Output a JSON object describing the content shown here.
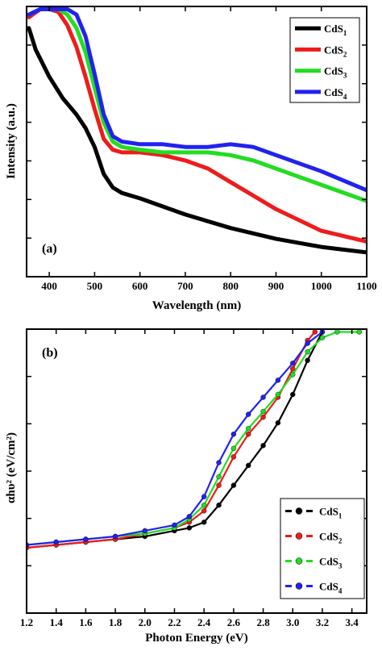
{
  "chart_data": [
    {
      "type": "line",
      "panel_label": "(a)",
      "xlabel": "Wavelength (nm)",
      "ylabel": "Intensity (a.u.)",
      "xlim": [
        350,
        1100
      ],
      "ylim": [
        0,
        1
      ],
      "xticks": [
        400,
        500,
        600,
        700,
        800,
        900,
        1000,
        1100
      ],
      "ytick_labels": "none",
      "legend_position": "top-right",
      "series": [
        {
          "name": "CdS",
          "sub": "1",
          "color": "#000000",
          "x": [
            355,
            370,
            400,
            430,
            460,
            480,
            500,
            520,
            540,
            560,
            600,
            650,
            700,
            800,
            900,
            1000,
            1100
          ],
          "y": [
            0.92,
            0.84,
            0.74,
            0.66,
            0.6,
            0.55,
            0.48,
            0.38,
            0.33,
            0.31,
            0.29,
            0.26,
            0.23,
            0.18,
            0.14,
            0.11,
            0.09
          ]
        },
        {
          "name": "CdS",
          "sub": "2",
          "color": "#ee1c1c",
          "x": [
            355,
            380,
            400,
            420,
            440,
            460,
            480,
            500,
            520,
            540,
            560,
            600,
            650,
            700,
            750,
            800,
            850,
            900,
            1000,
            1100
          ],
          "y": [
            0.96,
            0.99,
            0.99,
            0.98,
            0.93,
            0.85,
            0.74,
            0.62,
            0.51,
            0.47,
            0.46,
            0.46,
            0.45,
            0.43,
            0.4,
            0.35,
            0.3,
            0.25,
            0.17,
            0.13
          ]
        },
        {
          "name": "CdS",
          "sub": "3",
          "color": "#22dd22",
          "x": [
            355,
            380,
            400,
            420,
            440,
            460,
            480,
            500,
            520,
            540,
            560,
            600,
            650,
            700,
            750,
            800,
            850,
            900,
            1000,
            1100
          ],
          "y": [
            0.97,
            0.99,
            0.99,
            0.99,
            0.97,
            0.92,
            0.83,
            0.7,
            0.57,
            0.5,
            0.48,
            0.47,
            0.46,
            0.46,
            0.46,
            0.45,
            0.43,
            0.4,
            0.34,
            0.28
          ]
        },
        {
          "name": "CdS",
          "sub": "4",
          "color": "#2222ee",
          "x": [
            355,
            380,
            400,
            420,
            440,
            460,
            480,
            500,
            520,
            540,
            560,
            600,
            650,
            700,
            750,
            800,
            850,
            900,
            1000,
            1100
          ],
          "y": [
            0.97,
            0.99,
            0.99,
            0.99,
            0.99,
            0.97,
            0.89,
            0.75,
            0.6,
            0.52,
            0.5,
            0.49,
            0.49,
            0.48,
            0.48,
            0.49,
            0.48,
            0.45,
            0.39,
            0.32
          ]
        }
      ]
    },
    {
      "type": "scatter",
      "panel_label": "(b)",
      "xlabel": "Photon Energy (eV)",
      "ylabel": "αhυ² (eV/cm²)",
      "xlim": [
        1.2,
        3.5
      ],
      "ylim": [
        0,
        1
      ],
      "xticks": [
        "1.2",
        "1.4",
        "1.6",
        "1.8",
        "2.0",
        "2.2",
        "2.4",
        "2.6",
        "2.8",
        "3.0",
        "3.2",
        "3.4"
      ],
      "ytick_labels": "none",
      "legend_position": "bottom-right",
      "series": [
        {
          "name": "CdS",
          "sub": "1",
          "color": "#000000",
          "x": [
            1.2,
            1.4,
            1.6,
            1.8,
            2.0,
            2.2,
            2.3,
            2.4,
            2.5,
            2.6,
            2.7,
            2.8,
            2.9,
            3.0,
            3.1,
            3.2
          ],
          "y": [
            0.23,
            0.24,
            0.25,
            0.26,
            0.27,
            0.29,
            0.3,
            0.32,
            0.38,
            0.45,
            0.52,
            0.59,
            0.67,
            0.77,
            0.89,
            0.99
          ]
        },
        {
          "name": "CdS",
          "sub": "2",
          "color": "#ee1c1c",
          "x": [
            1.2,
            1.4,
            1.6,
            1.8,
            2.0,
            2.2,
            2.3,
            2.4,
            2.5,
            2.6,
            2.7,
            2.8,
            2.9,
            3.0,
            3.1,
            3.15
          ],
          "y": [
            0.23,
            0.24,
            0.25,
            0.26,
            0.28,
            0.3,
            0.32,
            0.36,
            0.45,
            0.55,
            0.63,
            0.69,
            0.76,
            0.86,
            0.96,
            0.99
          ]
        },
        {
          "name": "CdS",
          "sub": "3",
          "color": "#22dd22",
          "x": [
            1.2,
            1.4,
            1.6,
            1.8,
            2.0,
            2.2,
            2.3,
            2.4,
            2.5,
            2.6,
            2.7,
            2.8,
            2.9,
            3.0,
            3.1,
            3.2,
            3.3,
            3.45
          ],
          "y": [
            0.24,
            0.25,
            0.26,
            0.27,
            0.28,
            0.3,
            0.33,
            0.38,
            0.48,
            0.58,
            0.65,
            0.71,
            0.77,
            0.84,
            0.92,
            0.97,
            0.99,
            0.99
          ]
        },
        {
          "name": "CdS",
          "sub": "4",
          "color": "#2222ee",
          "x": [
            1.2,
            1.4,
            1.6,
            1.8,
            2.0,
            2.2,
            2.3,
            2.4,
            2.5,
            2.6,
            2.7,
            2.8,
            2.9,
            3.0,
            3.1,
            3.2
          ],
          "y": [
            0.24,
            0.25,
            0.26,
            0.27,
            0.29,
            0.31,
            0.34,
            0.41,
            0.53,
            0.63,
            0.7,
            0.76,
            0.82,
            0.88,
            0.95,
            0.99
          ]
        }
      ]
    }
  ]
}
